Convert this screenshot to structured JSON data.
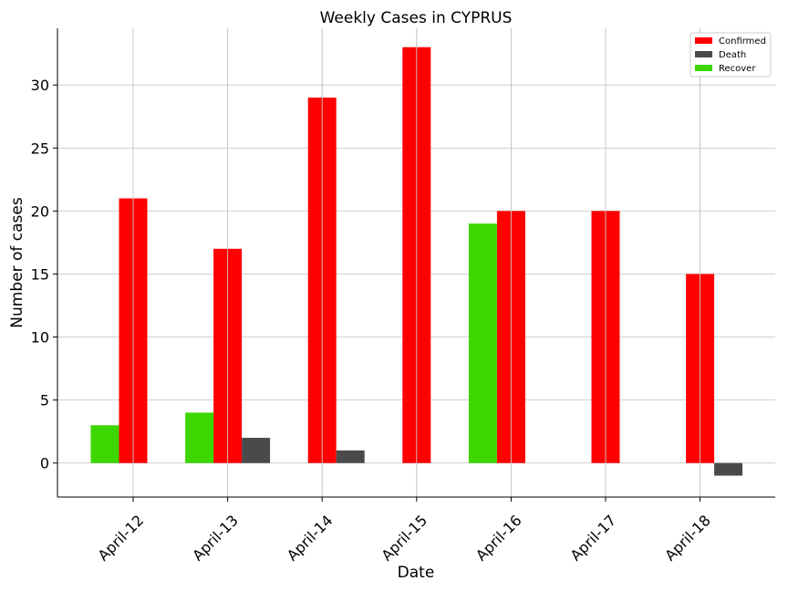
{
  "chart_data": {
    "type": "bar",
    "title": "Weekly Cases in CYPRUS",
    "xlabel": "Date",
    "ylabel": "Number of cases",
    "categories": [
      "April-12",
      "April-13",
      "April-14",
      "April-15",
      "April-16",
      "April-17",
      "April-18"
    ],
    "series": [
      {
        "name": "Confirmed",
        "color": "#ff0000",
        "values": [
          21,
          17,
          29,
          33,
          20,
          20,
          15
        ]
      },
      {
        "name": "Death",
        "color": "#4a4a4a",
        "values": [
          0,
          2,
          1,
          0,
          0,
          0,
          -1
        ]
      },
      {
        "name": "Recover",
        "color": "#3cd600",
        "values": [
          3,
          4,
          0,
          0,
          19,
          0,
          0
        ]
      }
    ],
    "yticks": [
      0,
      5,
      10,
      15,
      20,
      25,
      30
    ],
    "ylim": [
      -2.7,
      34.5
    ],
    "grid": true,
    "legend_position": "top-right"
  }
}
